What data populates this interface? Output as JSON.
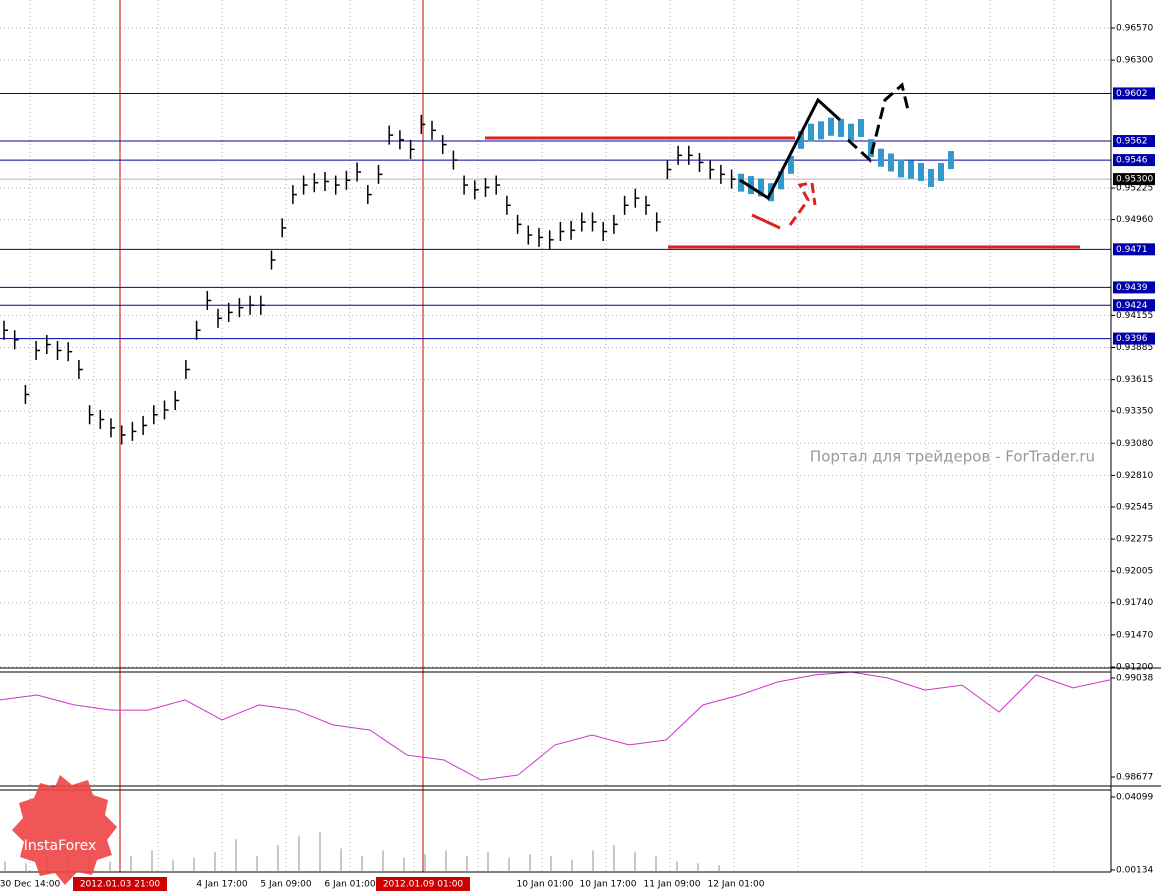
{
  "chart_data": {
    "type": "ohlc",
    "color": "#000000",
    "ylim": [
      0.912,
      0.9657
    ],
    "yticks": [
      {
        "value": 0.9657,
        "label": "0.96570"
      },
      {
        "value": 0.963,
        "label": "0.96300"
      },
      {
        "value": 0.95225,
        "label": "0.95225"
      },
      {
        "value": 0.9496,
        "label": "0.94960"
      },
      {
        "value": 0.94155,
        "label": "0.94155"
      },
      {
        "value": 0.93885,
        "label": "0.93885"
      },
      {
        "value": 0.93615,
        "label": "0.93615"
      },
      {
        "value": 0.9335,
        "label": "0.93350"
      },
      {
        "value": 0.9308,
        "label": "0.93080"
      },
      {
        "value": 0.9281,
        "label": "0.92810"
      },
      {
        "value": 0.92545,
        "label": "0.92545"
      },
      {
        "value": 0.92275,
        "label": "0.92275"
      },
      {
        "value": 0.92005,
        "label": "0.92005"
      },
      {
        "value": 0.9174,
        "label": "0.91740"
      },
      {
        "value": 0.9147,
        "label": "0.91470"
      },
      {
        "value": 0.912,
        "label": "0.91200"
      }
    ],
    "grid": true,
    "high": [
      0.9411,
      0.9403,
      0.9357,
      0.9394,
      0.9399,
      0.9394,
      0.9393,
      0.9378,
      0.934,
      0.9336,
      0.9329,
      0.9323,
      0.9326,
      0.9331,
      0.934,
      0.9344,
      0.9352,
      0.9378,
      0.9411,
      0.9436,
      0.9421,
      0.9426,
      0.943,
      0.9432,
      0.9432,
      0.947,
      0.9497,
      0.9525,
      0.9533,
      0.9535,
      0.9536,
      0.9533,
      0.9537,
      0.9544,
      0.9525,
      0.9542,
      0.9575,
      0.9571,
      0.9563,
      0.9584,
      0.9579,
      0.9567,
      0.9554,
      0.9533,
      0.9529,
      0.9531,
      0.9533,
      0.9516,
      0.95,
      0.9491,
      0.9489,
      0.9487,
      0.9494,
      0.9495,
      0.9502,
      0.9502,
      0.9494,
      0.95,
      0.9516,
      0.9522,
      0.9516,
      0.9502,
      0.9546,
      0.9558,
      0.9558,
      0.9552,
      0.9546,
      0.9542,
      0.9538
    ],
    "low": [
      0.9395,
      0.9387,
      0.9341,
      0.9378,
      0.9383,
      0.9378,
      0.9377,
      0.9362,
      0.9324,
      0.932,
      0.9313,
      0.9307,
      0.931,
      0.9315,
      0.9324,
      0.9328,
      0.9336,
      0.9362,
      0.9395,
      0.942,
      0.9405,
      0.941,
      0.9414,
      0.9416,
      0.9416,
      0.9454,
      0.9481,
      0.9509,
      0.9517,
      0.9519,
      0.952,
      0.9517,
      0.9521,
      0.9528,
      0.9509,
      0.9526,
      0.9559,
      0.9555,
      0.9547,
      0.9568,
      0.9563,
      0.9551,
      0.9538,
      0.9517,
      0.9513,
      0.9515,
      0.9517,
      0.95,
      0.9484,
      0.9475,
      0.9473,
      0.9471,
      0.9478,
      0.9479,
      0.9486,
      0.9486,
      0.9478,
      0.9484,
      0.95,
      0.9506,
      0.95,
      0.9486,
      0.953,
      0.9542,
      0.9542,
      0.9536,
      0.953,
      0.9526,
      0.9522
    ],
    "close": [
      0.9403,
      0.9395,
      0.9349,
      0.9386,
      0.9391,
      0.9386,
      0.9385,
      0.937,
      0.9332,
      0.9328,
      0.9321,
      0.9315,
      0.9318,
      0.9323,
      0.9332,
      0.9336,
      0.9344,
      0.937,
      0.9403,
      0.9428,
      0.9413,
      0.9418,
      0.9422,
      0.9424,
      0.9424,
      0.9462,
      0.9489,
      0.9517,
      0.9525,
      0.9527,
      0.9528,
      0.9525,
      0.9529,
      0.9536,
      0.9517,
      0.9534,
      0.9567,
      0.9563,
      0.9555,
      0.9576,
      0.9571,
      0.9559,
      0.9546,
      0.9525,
      0.9521,
      0.9523,
      0.9525,
      0.9508,
      0.9492,
      0.9483,
      0.9481,
      0.9479,
      0.9486,
      0.9487,
      0.9494,
      0.9494,
      0.9486,
      0.9492,
      0.9508,
      0.9514,
      0.9508,
      0.9494,
      0.9538,
      0.955,
      0.955,
      0.9544,
      0.9538,
      0.9534,
      0.953
    ],
    "forecast": {
      "color": "#3399cc",
      "values": [
        0.9527,
        0.9525,
        0.9523,
        0.9519,
        0.9529,
        0.9542,
        0.9563,
        0.9569,
        0.9571,
        0.9574,
        0.9573,
        0.9569,
        0.9573,
        0.9556,
        0.9548,
        0.9544,
        0.9539,
        0.9538,
        0.9536,
        0.9531,
        0.9536,
        0.9546
      ]
    },
    "levels": [
      0.9602,
      0.9562,
      0.9546,
      0.9471,
      0.9439,
      0.9424,
      0.9396
    ],
    "level_color": "#0000aa",
    "current_price": {
      "value": 0.953,
      "label": "0.95300"
    },
    "x_labels": [
      "30 Dec 14:00",
      "4 Jan 17:00",
      "5 Jan 09:00",
      "6 Jan 01:00",
      "10 Jan 01:00",
      "10 Jan 17:00",
      "11 Jan 09:00",
      "12 Jan 01:00"
    ],
    "markers": [
      "2012.01.03 21:00",
      "2012.01.09 01:00"
    ],
    "marker_color": "#cc0000",
    "watermark": "Портал для трейдеров - ForTrader.ru",
    "logo": "InstaForex",
    "indicator": {
      "color": "#cc33cc",
      "ylim": [
        0.98677,
        0.99038
      ],
      "yticks": [
        0.99038,
        0.98677
      ],
      "values": [
        0.98958,
        0.98976,
        0.9894,
        0.98921,
        0.98921,
        0.98958,
        0.98885,
        0.9894,
        0.98921,
        0.98867,
        0.98848,
        0.98757,
        0.98739,
        0.98666,
        0.98684,
        0.98794,
        0.9883,
        0.98794,
        0.98812,
        0.9894,
        0.98976,
        0.99023,
        0.99049,
        0.9906,
        0.99038,
        0.98994,
        0.99012,
        0.98914,
        0.99049,
        0.99002,
        0.99031
      ]
    },
    "volume": {
      "color": "#c8c8c8",
      "ylim": [
        0.00134,
        0.04099
      ],
      "yticks": [
        0.04099,
        0.00134
      ],
      "values": [
        0.006,
        0.005,
        0.008,
        0.007,
        0.01,
        0.006,
        0.009,
        0.012,
        0.007,
        0.008,
        0.011,
        0.018,
        0.009,
        0.015,
        0.02,
        0.022,
        0.013,
        0.009,
        0.012,
        0.008,
        0.01,
        0.012,
        0.009,
        0.011,
        0.008,
        0.01,
        0.009,
        0.007,
        0.012,
        0.015,
        0.011,
        0.009,
        0.006,
        0.005,
        0.004
      ]
    }
  }
}
